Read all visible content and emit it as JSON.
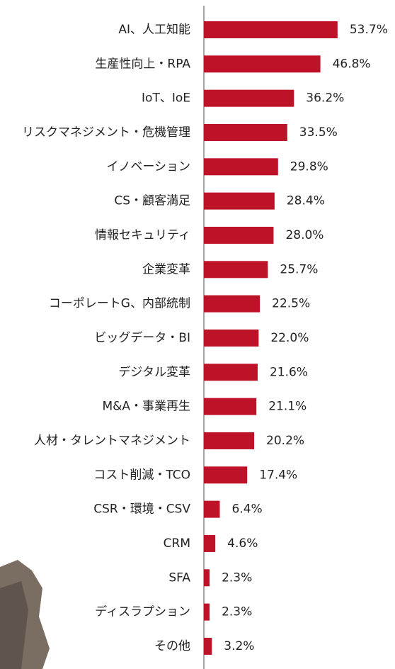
{
  "chart_data": {
    "type": "bar",
    "orientation": "horizontal",
    "categories": [
      "AI、人工知能",
      "生産性向上・RPA",
      "IoT、IoE",
      "リスクマネジメント・危機管理",
      "イノベーション",
      "CS・顧客満足",
      "情報セキュリティ",
      "企業変革",
      "コーポレートG、内部統制",
      "ビッグデータ・BI",
      "デジタル変革",
      "M&A・事業再生",
      "人材・タレントマネジメント",
      "コスト削減・TCO",
      "CSR・環境・CSV",
      "CRM",
      "SFA",
      "ディスラプション",
      "その他"
    ],
    "values": [
      53.7,
      46.8,
      36.2,
      33.5,
      29.8,
      28.4,
      28.0,
      25.7,
      22.5,
      22.0,
      21.6,
      21.1,
      20.2,
      17.4,
      6.4,
      4.6,
      2.3,
      2.3,
      3.2
    ],
    "value_labels": [
      "53.7%",
      "46.8%",
      "36.2%",
      "33.5%",
      "29.8%",
      "28.4%",
      "28.0%",
      "25.7%",
      "22.5%",
      "22.0%",
      "21.6%",
      "21.1%",
      "20.2%",
      "17.4%",
      "6.4%",
      "4.6%",
      "2.3%",
      "2.3%",
      "3.2%"
    ],
    "color": "#be1229",
    "xlim": [
      0,
      60
    ]
  }
}
